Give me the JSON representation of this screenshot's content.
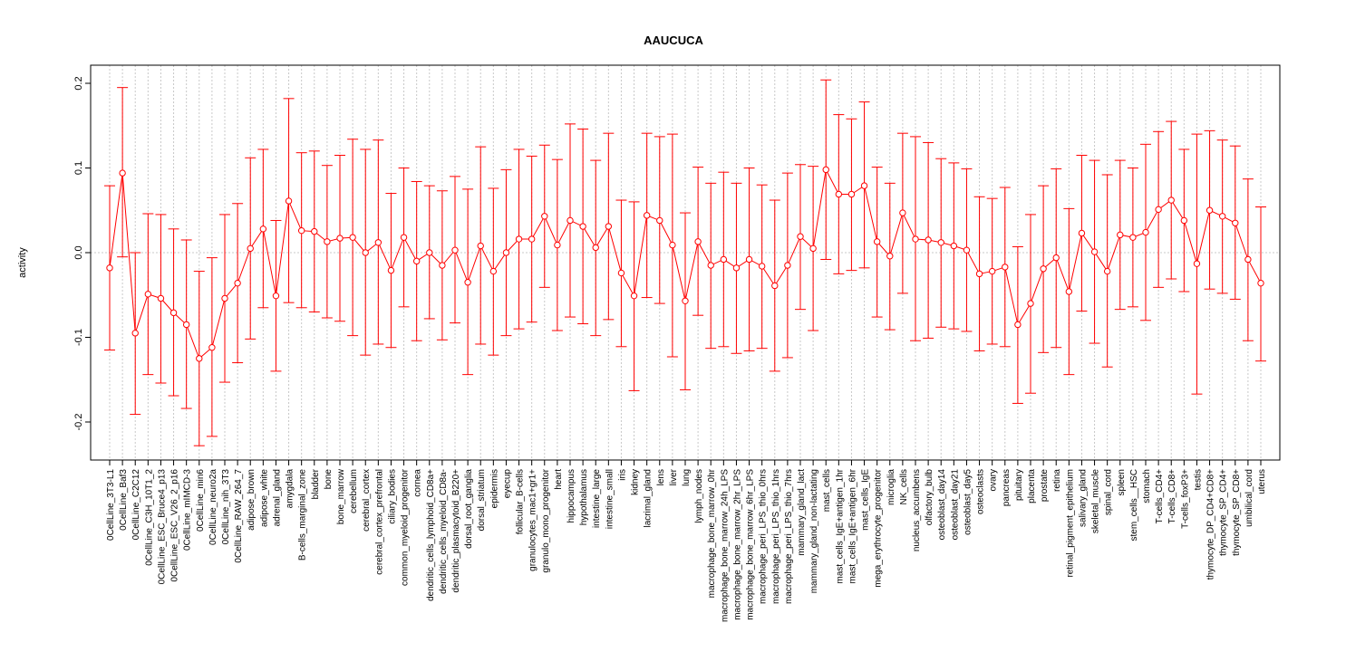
{
  "chart_data": {
    "type": "line",
    "title": "AAUCUCA",
    "xlabel": "",
    "ylabel": "activity",
    "ylim": [
      -0.24,
      0.22
    ],
    "yticks": [
      -0.2,
      -0.1,
      0.0,
      0.1,
      0.2
    ],
    "ytick_labels": [
      "-0.2",
      "-0.1",
      "0.0",
      "0.1",
      "0.2"
    ],
    "grid": true,
    "colors": {
      "series": "#ff0000",
      "grid": "#c8c8c8",
      "axis": "#000000"
    },
    "categories": [
      "0CellLine_3T3-L1",
      "0CellLine_Baf3",
      "0CellLine_C2C12",
      "0CellLine_C3H_10T1_2",
      "0CellLine_ESC_Bruce4_p13",
      "0CellLine_ESC_V26_2_p16",
      "0CellLine_mIMCD-3",
      "0CellLine_min6",
      "0CellLine_neuro2a",
      "0CellLine_nih_3T3",
      "0CellLine_RAW_264_7",
      "adipose_brown",
      "adipose_white",
      "adrenal_gland",
      "amygdala",
      "B-cells_marginal_zone",
      "bladder",
      "bone",
      "bone_marrow",
      "cerebellum",
      "cerebral_cortex",
      "cerebral_cortex_prefrontal",
      "ciliary_bodies",
      "common_myeloid_progenitor",
      "cornea",
      "dendritic_cells_lymphoid_CD8a+",
      "dendritic_cells_myeloid_CD8a-",
      "dendritic_plasmacytoid_B220+",
      "dorsal_root_ganglia",
      "dorsal_striatum",
      "epidermis",
      "eyecup",
      "follicular_B-cells",
      "granulocytes_mac1+gr1+",
      "granulo_mono_progenitor",
      "heart",
      "hippocampus",
      "hypothalamus",
      "intestine_large",
      "intestine_small",
      "iris",
      "kidney",
      "lacrimal_gland",
      "lens",
      "liver",
      "lung",
      "lymph_nodes",
      "macrophage_bone_marrow_0hr",
      "macrophage_bone_marrow_24h_LPS",
      "macrophage_bone_marrow_2hr_LPS",
      "macrophage_bone_marrow_6hr_LPS",
      "macrophage_peri_LPS_thio_0hrs",
      "macrophage_peri_LPS_thio_1hrs",
      "macrophage_peri_LPS_thio_7hrs",
      "mammary_gland_lact",
      "mammary_gland_non-lactating",
      "mast_cells",
      "mast_cells_IgE+antigen_1hr",
      "mast_cells_IgE+antigen_6hr",
      "mast_cells_IgE",
      "mega_erythrocyte_progenitor",
      "microglia",
      "NK_cells",
      "nucleus_accumbens",
      "olfactory_bulb",
      "osteoblast_day14",
      "osteoblast_day21",
      "osteoblast_day5",
      "osteoclasts",
      "ovary",
      "pancreas",
      "pituitary",
      "placenta",
      "prostate",
      "retina",
      "retinal_pigment_epithelium",
      "salivary_gland",
      "skeletal_muscle",
      "spinal_cord",
      "spleen",
      "stem_cells__HSC",
      "stomach",
      "T-cells_CD4+",
      "T-cells_CD8+",
      "T-cells_foxP3+",
      "testis",
      "thymocyte_DP_CD4+CD8+",
      "thymocyte_SP_CD4+",
      "thymocyte_SP_CD8+",
      "umbilical_cord",
      "uterus"
    ],
    "values": [
      -0.018,
      0.094,
      -0.095,
      -0.049,
      -0.054,
      -0.071,
      -0.085,
      -0.125,
      -0.112,
      -0.054,
      -0.036,
      0.005,
      0.028,
      -0.051,
      0.061,
      0.026,
      0.025,
      0.013,
      0.017,
      0.018,
      0.0,
      0.012,
      -0.021,
      0.018,
      -0.01,
      0.0,
      -0.015,
      0.003,
      -0.035,
      0.008,
      -0.022,
      0.0,
      0.016,
      0.016,
      0.043,
      0.009,
      0.038,
      0.031,
      0.006,
      0.031,
      -0.024,
      -0.051,
      0.044,
      0.038,
      0.009,
      -0.057,
      0.013,
      -0.015,
      -0.008,
      -0.018,
      -0.008,
      -0.016,
      -0.039,
      -0.015,
      0.019,
      0.005,
      0.098,
      0.069,
      0.069,
      0.079,
      0.013,
      -0.004,
      0.047,
      0.016,
      0.015,
      0.012,
      0.008,
      0.003,
      -0.025,
      -0.022,
      -0.017,
      -0.085,
      -0.06,
      -0.019,
      -0.006,
      -0.046,
      0.023,
      0.001,
      -0.022,
      0.021,
      0.018,
      0.024,
      0.051,
      0.062,
      0.038,
      -0.013,
      0.05,
      0.043,
      0.035,
      -0.008,
      -0.036
    ],
    "upper": [
      0.079,
      0.195,
      0.0,
      0.046,
      0.045,
      0.028,
      0.015,
      -0.022,
      -0.006,
      0.045,
      0.058,
      0.112,
      0.122,
      0.038,
      0.182,
      0.118,
      0.12,
      0.103,
      0.115,
      0.134,
      0.122,
      0.133,
      0.07,
      0.1,
      0.084,
      0.079,
      0.073,
      0.09,
      0.075,
      0.125,
      0.076,
      0.098,
      0.122,
      0.114,
      0.127,
      0.11,
      0.152,
      0.146,
      0.109,
      0.141,
      0.062,
      0.06,
      0.141,
      0.137,
      0.14,
      0.047,
      0.101,
      0.082,
      0.095,
      0.082,
      0.1,
      0.08,
      0.062,
      0.094,
      0.104,
      0.102,
      0.204,
      0.163,
      0.158,
      0.178,
      0.101,
      0.082,
      0.141,
      0.137,
      0.13,
      0.111,
      0.106,
      0.099,
      0.066,
      0.064,
      0.077,
      0.007,
      0.045,
      0.079,
      0.099,
      0.052,
      0.115,
      0.109,
      0.092,
      0.109,
      0.1,
      0.128,
      0.143,
      0.155,
      0.122,
      0.14,
      0.144,
      0.133,
      0.126,
      0.087,
      0.054
    ],
    "lower": [
      -0.115,
      -0.005,
      -0.191,
      -0.144,
      -0.154,
      -0.169,
      -0.184,
      -0.228,
      -0.217,
      -0.153,
      -0.13,
      -0.102,
      -0.065,
      -0.14,
      -0.059,
      -0.065,
      -0.07,
      -0.077,
      -0.081,
      -0.098,
      -0.121,
      -0.108,
      -0.112,
      -0.064,
      -0.104,
      -0.078,
      -0.103,
      -0.083,
      -0.144,
      -0.108,
      -0.121,
      -0.098,
      -0.09,
      -0.082,
      -0.041,
      -0.092,
      -0.076,
      -0.084,
      -0.098,
      -0.079,
      -0.111,
      -0.163,
      -0.053,
      -0.06,
      -0.123,
      -0.162,
      -0.074,
      -0.113,
      -0.111,
      -0.119,
      -0.116,
      -0.113,
      -0.14,
      -0.124,
      -0.067,
      -0.092,
      -0.008,
      -0.025,
      -0.021,
      -0.018,
      -0.076,
      -0.091,
      -0.048,
      -0.104,
      -0.101,
      -0.088,
      -0.09,
      -0.093,
      -0.116,
      -0.108,
      -0.111,
      -0.178,
      -0.166,
      -0.118,
      -0.112,
      -0.144,
      -0.069,
      -0.107,
      -0.135,
      -0.067,
      -0.064,
      -0.08,
      -0.041,
      -0.031,
      -0.046,
      -0.167,
      -0.043,
      -0.048,
      -0.055,
      -0.104,
      -0.128
    ]
  }
}
